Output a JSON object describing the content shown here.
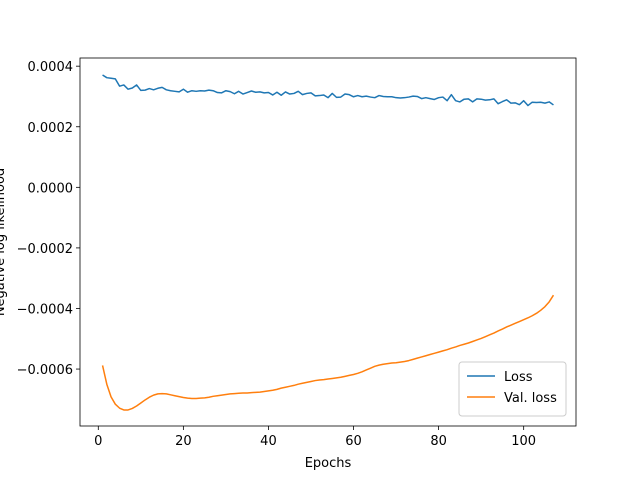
{
  "chart_data": {
    "type": "line",
    "xlabel": "Epochs",
    "ylabel": "Negative log likelihood",
    "x": [
      1,
      2,
      3,
      4,
      5,
      6,
      7,
      8,
      9,
      10,
      11,
      12,
      13,
      14,
      15,
      16,
      17,
      18,
      19,
      20,
      21,
      22,
      23,
      24,
      25,
      26,
      27,
      28,
      29,
      30,
      31,
      32,
      33,
      34,
      35,
      36,
      37,
      38,
      39,
      40,
      41,
      42,
      43,
      44,
      45,
      46,
      47,
      48,
      49,
      50,
      51,
      52,
      53,
      54,
      55,
      56,
      57,
      58,
      59,
      60,
      61,
      62,
      63,
      64,
      65,
      66,
      67,
      68,
      69,
      70,
      71,
      72,
      73,
      74,
      75,
      76,
      77,
      78,
      79,
      80,
      81,
      82,
      83,
      84,
      85,
      86,
      87,
      88,
      89,
      90,
      91,
      92,
      93,
      94,
      95,
      96,
      97,
      98,
      99,
      100,
      101,
      102,
      103,
      104,
      105,
      106,
      107
    ],
    "series": [
      {
        "name": "Loss",
        "color": "#1f77b4",
        "values": [
          0.000371,
          0.000362,
          0.00036,
          0.000358,
          0.000334,
          0.000338,
          0.000324,
          0.000328,
          0.000338,
          0.00032,
          0.000321,
          0.000326,
          0.000322,
          0.000327,
          0.00033,
          0.000322,
          0.000319,
          0.000317,
          0.000315,
          0.000324,
          0.000314,
          0.000319,
          0.000317,
          0.000319,
          0.000318,
          0.000321,
          0.000319,
          0.000313,
          0.000312,
          0.000319,
          0.000316,
          0.000309,
          0.000317,
          0.000308,
          0.000313,
          0.000318,
          0.000314,
          0.000315,
          0.000312,
          0.000313,
          0.000305,
          0.000314,
          0.000304,
          0.000315,
          0.000308,
          0.00031,
          0.000317,
          0.000306,
          0.00031,
          0.000312,
          0.000302,
          0.000303,
          0.000305,
          0.000296,
          0.00031,
          0.000297,
          0.000298,
          0.000308,
          0.000306,
          0.000299,
          0.000303,
          0.000299,
          0.000301,
          0.000298,
          0.000296,
          0.000303,
          0.0003,
          0.000299,
          0.000299,
          0.000296,
          0.000295,
          0.000296,
          0.000298,
          0.000301,
          0.0003,
          0.000293,
          0.000296,
          0.000293,
          0.00029,
          0.000296,
          0.000298,
          0.000286,
          0.000306,
          0.000286,
          0.000282,
          0.000291,
          0.000292,
          0.000282,
          0.000292,
          0.000291,
          0.000288,
          0.000289,
          0.000292,
          0.000276,
          0.000283,
          0.000289,
          0.000278,
          0.000279,
          0.000273,
          0.000286,
          0.00027,
          0.000281,
          0.00028,
          0.000281,
          0.000278,
          0.000282,
          0.000272
        ]
      },
      {
        "name": "Val. loss",
        "color": "#ff7f0e",
        "values": [
          -0.000588,
          -0.00065,
          -0.000692,
          -0.000716,
          -0.000729,
          -0.000735,
          -0.000735,
          -0.00073,
          -0.000722,
          -0.000712,
          -0.000702,
          -0.000693,
          -0.000686,
          -0.000682,
          -0.000681,
          -0.000682,
          -0.000685,
          -0.000688,
          -0.000691,
          -0.000694,
          -0.000696,
          -0.000697,
          -0.000697,
          -0.000696,
          -0.000695,
          -0.000693,
          -0.00069,
          -0.000688,
          -0.000686,
          -0.000684,
          -0.000682,
          -0.000681,
          -0.00068,
          -0.000679,
          -0.000679,
          -0.000678,
          -0.000677,
          -0.000676,
          -0.000674,
          -0.000672,
          -0.00067,
          -0.000667,
          -0.000663,
          -0.00066,
          -0.000657,
          -0.000654,
          -0.00065,
          -0.000647,
          -0.000644,
          -0.000641,
          -0.000638,
          -0.000636,
          -0.000635,
          -0.000633,
          -0.000631,
          -0.000629,
          -0.000627,
          -0.000624,
          -0.000621,
          -0.000618,
          -0.000614,
          -0.000609,
          -0.000603,
          -0.000597,
          -0.000591,
          -0.000587,
          -0.000584,
          -0.000582,
          -0.00058,
          -0.000579,
          -0.000577,
          -0.000575,
          -0.000572,
          -0.000568,
          -0.000564,
          -0.00056,
          -0.000556,
          -0.000552,
          -0.000548,
          -0.000544,
          -0.00054,
          -0.000536,
          -0.000531,
          -0.000527,
          -0.000522,
          -0.000518,
          -0.000514,
          -0.000509,
          -0.000504,
          -0.000499,
          -0.000493,
          -0.000487,
          -0.000481,
          -0.000474,
          -0.000468,
          -0.000461,
          -0.000455,
          -0.000449,
          -0.000443,
          -0.000437,
          -0.000431,
          -0.000424,
          -0.000416,
          -0.000406,
          -0.000394,
          -0.000378,
          -0.000356
        ]
      }
    ],
    "xlim": [
      -4.3,
      112.3
    ],
    "xticks": [
      0,
      20,
      40,
      60,
      80,
      100
    ],
    "ylim": [
      -0.000788,
      0.000427
    ],
    "yticks": [
      {
        "value": -0.0006,
        "label": "−0.0006"
      },
      {
        "value": -0.0004,
        "label": "−0.0004"
      },
      {
        "value": -0.0002,
        "label": "−0.0002"
      },
      {
        "value": 0,
        "label": "0.0000"
      },
      0.0002,
      0.0004
    ],
    "grid": false,
    "legend": "lower right"
  }
}
